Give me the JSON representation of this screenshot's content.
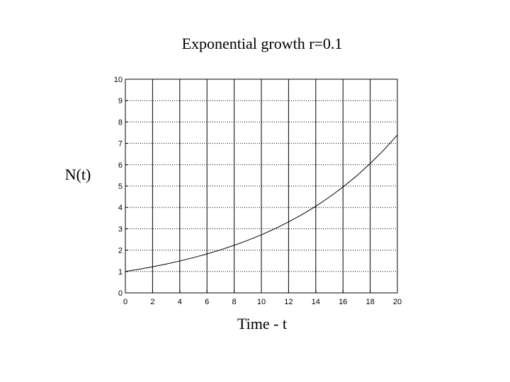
{
  "chart_data": {
    "type": "line",
    "title": "Exponential growth r=0.1",
    "xlabel": "Time - t",
    "ylabel": "N(t)",
    "xlim": [
      0,
      20
    ],
    "ylim": [
      0,
      10
    ],
    "x_ticks": [
      0,
      2,
      4,
      6,
      8,
      10,
      12,
      14,
      16,
      18,
      20
    ],
    "y_ticks": [
      0,
      1,
      2,
      3,
      4,
      5,
      6,
      7,
      8,
      9,
      10
    ],
    "grid": true,
    "series": [
      {
        "x": [
          0,
          1,
          2,
          3,
          4,
          5,
          6,
          7,
          8,
          9,
          10,
          11,
          12,
          13,
          14,
          15,
          16,
          17,
          18,
          19,
          20
        ],
        "values": [
          1.0,
          1.105,
          1.221,
          1.35,
          1.492,
          1.649,
          1.822,
          2.014,
          2.226,
          2.46,
          2.718,
          3.004,
          3.32,
          3.669,
          4.055,
          4.482,
          4.953,
          5.474,
          6.05,
          6.686,
          7.389
        ],
        "color": "#000000"
      }
    ]
  }
}
